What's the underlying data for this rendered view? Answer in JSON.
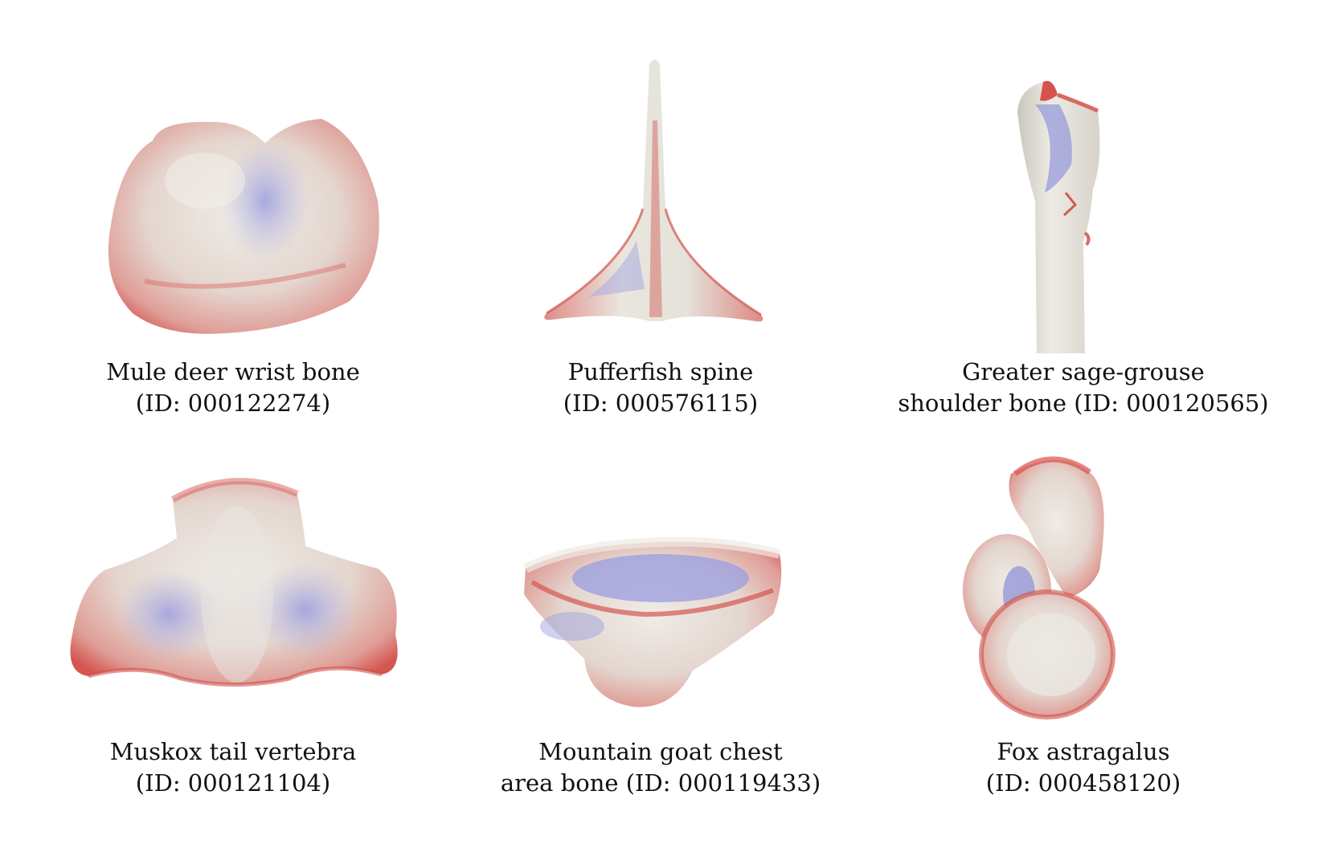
{
  "figure": {
    "panels": [
      {
        "name": "mule-deer-wrist-bone",
        "line1": "Mule deer wrist bone",
        "line2": "(ID: 000122274)"
      },
      {
        "name": "pufferfish-spine",
        "line1": "Pufferfish spine",
        "line2": "(ID: 000576115)"
      },
      {
        "name": "greater-sage-grouse-shoulder-bone",
        "line1": "Greater sage-grouse",
        "line2": "shoulder bone (ID: 000120565)"
      },
      {
        "name": "muskox-tail-vertebra",
        "line1": "Muskox tail vertebra",
        "line2": "(ID: 000121104)"
      },
      {
        "name": "mountain-goat-chest-area-bone",
        "line1": "Mountain goat chest",
        "line2": "area bone (ID: 000119433)"
      },
      {
        "name": "fox-astragalus",
        "line1": "Fox astragalus",
        "line2": "(ID: 000458120)"
      }
    ],
    "colors": {
      "surface": "#e6e2da",
      "edge_red": "#d24a48",
      "concave_blue": "#8f93d8"
    }
  }
}
